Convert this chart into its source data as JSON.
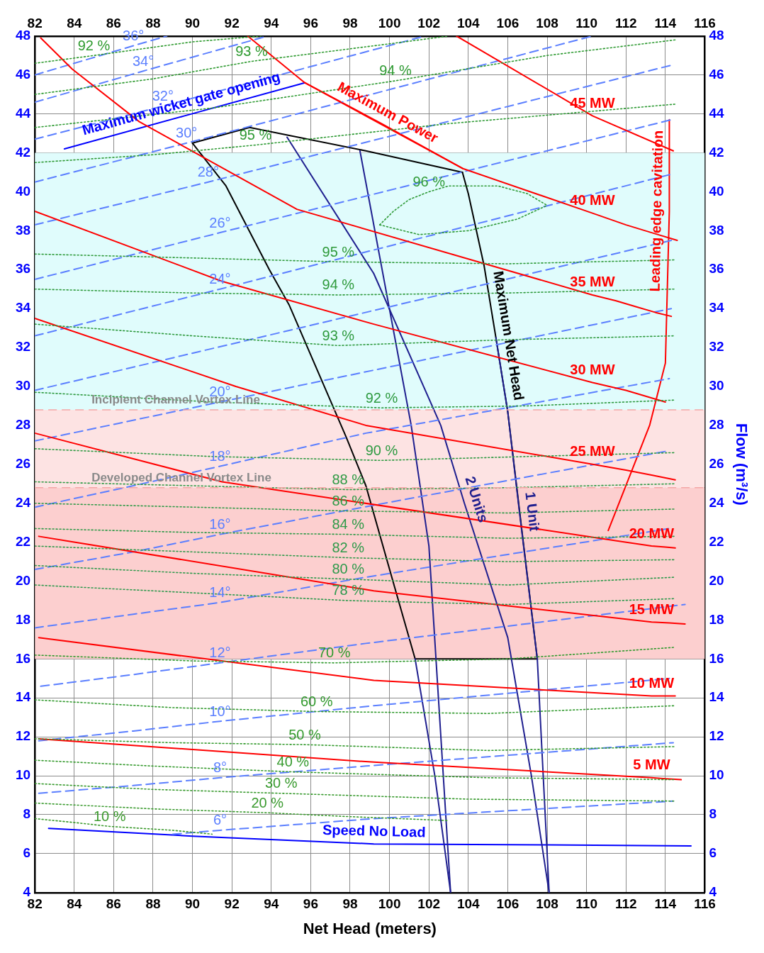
{
  "chart_data": {
    "type": "line",
    "xlabel": "Net Head (meters)",
    "y2label": "Flow (m³/s)",
    "xlim": [
      82,
      116
    ],
    "xticks": [
      82,
      84,
      86,
      88,
      90,
      92,
      94,
      96,
      98,
      100,
      102,
      104,
      106,
      108,
      110,
      112,
      114,
      116
    ],
    "x2lim": [
      82,
      116
    ],
    "x2ticks": [
      82,
      84,
      86,
      88,
      90,
      92,
      94,
      96,
      98,
      100,
      102,
      104,
      106,
      108,
      110,
      112,
      114,
      116
    ],
    "ylim": [
      4,
      48
    ],
    "yticks": [
      4,
      6,
      8,
      10,
      12,
      14,
      16,
      18,
      20,
      22,
      24,
      26,
      28,
      30,
      32,
      34,
      36,
      38,
      40,
      42,
      44,
      46,
      48
    ],
    "y2lim": [
      4,
      48
    ],
    "y2ticks": [
      4,
      6,
      8,
      10,
      12,
      14,
      16,
      18,
      20,
      22,
      24,
      26,
      28,
      30,
      32,
      34,
      36,
      38,
      40,
      42,
      44,
      46,
      48
    ],
    "grid": true,
    "marker": "none",
    "bands": [
      {
        "axis": "y",
        "from": 28.8,
        "to": 42,
        "color": "#e0fcfc"
      },
      {
        "axis": "y",
        "from": 24.8,
        "to": 28.8,
        "color": "#fde3e3"
      },
      {
        "axis": "y",
        "from": 16,
        "to": 24.8,
        "color": "#fccfcf"
      }
    ],
    "ref_lines": [
      {
        "axis": "y",
        "value": 28.8,
        "label": "Incipient Channel Vortex Line",
        "color": "#f4a6a6",
        "line_style": "dashed"
      },
      {
        "axis": "y",
        "value": 24.8,
        "label": "Developed Channel Vortex Line",
        "color": "#f4a6a6",
        "line_style": "dashed"
      }
    ],
    "series": [
      {
        "name": "92 %",
        "color": "#2e9a2e",
        "line_style": "dotted",
        "x": [
          82,
          83.5,
          85,
          90,
          93.5
        ],
        "values": [
          46.6,
          46.8,
          47,
          47.7,
          48
        ]
      },
      {
        "name": "93 %",
        "color": "#2e9a30",
        "line_style": "dotted",
        "x": [
          82,
          88,
          93,
          100,
          103
        ],
        "values": [
          45,
          45.8,
          46.7,
          47.6,
          48
        ]
      },
      {
        "name": "94 %",
        "color": "#2e9a32",
        "line_style": "dotted",
        "x": [
          82,
          91,
          100.3,
          108,
          114.5
        ],
        "values": [
          43.3,
          44.3,
          45.7,
          47,
          47.8
        ]
      },
      {
        "name": "95 %",
        "color": "#2e9a34",
        "line_style": "dotted",
        "x": [
          82,
          88,
          93.2,
          103,
          114.5
        ],
        "values": [
          41.5,
          41.9,
          42.4,
          43.5,
          44.5
        ]
      },
      {
        "name": "96 %",
        "color": "#2e9a36",
        "line_style": "dotted",
        "x": [
          99.5,
          100.2,
          101,
          102,
          103,
          105.5,
          107,
          108
        ],
        "values": [
          38.3,
          39,
          39.6,
          40,
          40.3,
          40.3,
          39.9,
          39.3
        ]
      },
      {
        "color": "#2e9a38",
        "line_style": "dotted",
        "x": [
          99.5,
          101.5,
          104,
          106.5,
          108
        ],
        "values": [
          38.3,
          37.8,
          38,
          38.6,
          39.3
        ]
      },
      {
        "name": "95 %",
        "color": "#2e9a3a",
        "line_style": "dotted",
        "x": [
          82,
          90,
          97.4,
          106,
          114.5
        ],
        "values": [
          36.8,
          36.6,
          36.4,
          36.3,
          36.5
        ]
      },
      {
        "name": "94 %",
        "color": "#2e9a3c",
        "line_style": "dotted",
        "x": [
          82,
          90,
          97.4,
          106,
          114.5
        ],
        "values": [
          35,
          34.8,
          34.7,
          34.8,
          35
        ]
      },
      {
        "name": "93 %",
        "color": "#2e9a3e",
        "line_style": "dotted",
        "x": [
          82,
          90,
          97.4,
          106,
          114.5
        ],
        "values": [
          33.2,
          32.6,
          32.1,
          32.4,
          32.6
        ]
      },
      {
        "name": "92 %",
        "color": "#2e9a40",
        "line_style": "dotted",
        "x": [
          82,
          91,
          99.6,
          107,
          114.5
        ],
        "values": [
          29.7,
          29.2,
          28.9,
          29,
          29.3
        ]
      },
      {
        "name": "90 %",
        "color": "#2e9a42",
        "line_style": "dotted",
        "x": [
          82,
          91,
          99.6,
          107,
          114.5
        ],
        "values": [
          26.8,
          26.4,
          26.2,
          26.4,
          26.6
        ]
      },
      {
        "name": "88 %",
        "color": "#2e9a44",
        "line_style": "dotted",
        "x": [
          82,
          90,
          97.9,
          106,
          114.5
        ],
        "values": [
          25.1,
          24.9,
          24.7,
          24.8,
          25
        ]
      },
      {
        "name": "86 %",
        "color": "#2e9a46",
        "line_style": "dotted",
        "x": [
          82,
          90,
          97.9,
          106,
          114.5
        ],
        "values": [
          24,
          23.8,
          23.6,
          23.5,
          23.7
        ]
      },
      {
        "name": "84 %",
        "color": "#2e9a48",
        "line_style": "dotted",
        "x": [
          82,
          90,
          97.9,
          106,
          114.5
        ],
        "values": [
          22.7,
          22.5,
          22.4,
          22.2,
          22.3
        ]
      },
      {
        "name": "82 %",
        "color": "#2e9a4a",
        "line_style": "dotted",
        "x": [
          82,
          90,
          97.9,
          106,
          114.5
        ],
        "values": [
          21.8,
          21.5,
          21.2,
          21,
          21.1
        ]
      },
      {
        "name": "80 %",
        "color": "#2e9a4c",
        "line_style": "dotted",
        "x": [
          82,
          90,
          97.9,
          106,
          114.5
        ],
        "values": [
          20.8,
          20.4,
          20.1,
          19.8,
          20.2
        ]
      },
      {
        "name": "78 %",
        "color": "#2e9a4e",
        "line_style": "dotted",
        "x": [
          82,
          90,
          97.9,
          106,
          114.5
        ],
        "values": [
          19.8,
          19.4,
          19,
          18.8,
          19.1
        ]
      },
      {
        "name": "70 %",
        "color": "#309a2e",
        "line_style": "dotted",
        "x": [
          82,
          90,
          97.2,
          106,
          114.5
        ],
        "values": [
          16.2,
          15.9,
          15.8,
          16,
          16.6
        ]
      },
      {
        "name": "60 %",
        "color": "#329a2e",
        "line_style": "dotted",
        "x": [
          82,
          89,
          96.3,
          105,
          114.5
        ],
        "values": [
          13.9,
          13.5,
          13.3,
          13.2,
          13.6
        ]
      },
      {
        "name": "50 %",
        "color": "#349a2e",
        "line_style": "dotted",
        "x": [
          82,
          89,
          95.7,
          105,
          114.5
        ],
        "values": [
          11.9,
          11.7,
          11.6,
          11.3,
          11.5
        ]
      },
      {
        "name": "40 %",
        "color": "#369a2e",
        "line_style": "dotted",
        "x": [
          82,
          88,
          95.1,
          105,
          114.5
        ],
        "values": [
          10.8,
          10.5,
          10.2,
          9.9,
          9.8
        ]
      },
      {
        "name": "30 %",
        "color": "#389a2e",
        "line_style": "dotted",
        "x": [
          82,
          88,
          94.5,
          104,
          114.5
        ],
        "values": [
          9.6,
          9.3,
          9.1,
          8.8,
          8.7
        ]
      },
      {
        "name": "20 %",
        "color": "#3a9a2e",
        "line_style": "dotted",
        "x": [
          82,
          88,
          93.8,
          98,
          103
        ],
        "values": [
          8.6,
          8.3,
          8.1,
          7.9,
          7.7
        ]
      },
      {
        "name": "10 %",
        "color": "#3c9a2e",
        "line_style": "dotted",
        "x": [
          82,
          84,
          85.8,
          89,
          91
        ],
        "values": [
          7.8,
          7.6,
          7.4,
          7.2,
          7
        ]
      },
      {
        "name": "5 MW",
        "color": "#ff0000",
        "x": [
          82.2,
          99.2,
          113.3,
          114,
          114.8
        ],
        "values": [
          11.9,
          10.7,
          9.9,
          9.85,
          9.8
        ]
      },
      {
        "name": "10 MW",
        "color": "#ff0000",
        "x": [
          82.2,
          99.2,
          113.3,
          114,
          114.5
        ],
        "values": [
          17.1,
          14.9,
          14.1,
          14.1,
          14.1
        ]
      },
      {
        "name": "15 MW",
        "color": "#ff0000",
        "x": [
          82.2,
          99.2,
          113.3,
          114.2,
          115
        ],
        "values": [
          22.3,
          19.5,
          17.9,
          17.85,
          17.8
        ]
      },
      {
        "name": "20 MW",
        "color": "#ff0000",
        "x": [
          82,
          91.5,
          113.3,
          114,
          114.5
        ],
        "values": [
          27.6,
          25.1,
          21.8,
          21.75,
          21.7
        ]
      },
      {
        "name": "25 MW",
        "color": "#ff0000",
        "x": [
          82,
          92.2,
          98.8,
          110.3,
          112,
          113.3,
          114.5
        ],
        "values": [
          33.5,
          30,
          28,
          26,
          25.7,
          25.45,
          25.2
        ]
      },
      {
        "name": "30 MW",
        "color": "#ff0000",
        "x": [
          82,
          91.5,
          99.2,
          110.3,
          112,
          113,
          114
        ],
        "values": [
          39,
          35.4,
          33.2,
          30.2,
          29.8,
          29.5,
          29.2
        ]
      },
      {
        "name": "35 MW",
        "color": "#ff0000",
        "x": [
          82.3,
          83.9,
          87.3,
          95.3,
          110.3,
          111.5,
          112.5,
          113.5,
          114.3
        ],
        "values": [
          47.9,
          46.3,
          43.6,
          39.1,
          34.7,
          34.4,
          34.1,
          33.8,
          33.6
        ]
      },
      {
        "name": "40 MW",
        "color": "#ff0000",
        "x": [
          92.8,
          95.7,
          103.7,
          110.3,
          112,
          113.3,
          114.6
        ],
        "values": [
          48,
          45.6,
          41.2,
          38.9,
          38.3,
          37.9,
          37.5
        ]
      },
      {
        "name": "45 MW",
        "color": "#ff0000",
        "x": [
          103.4,
          110.3,
          114.4
        ],
        "values": [
          48,
          43.9,
          42.1
        ]
      },
      {
        "name": "6°",
        "color": "#5b7fff",
        "line_style": "dashed",
        "x": [
          89,
          90.2,
          91.4,
          99.2,
          114.4
        ],
        "values": [
          7,
          7.1,
          7.2,
          7.8,
          8.7
        ]
      },
      {
        "name": "8°",
        "color": "#5b7fff",
        "line_style": "dashed",
        "x": [
          82.2,
          87,
          91.4,
          98.8,
          114.4
        ],
        "values": [
          9.1,
          9.5,
          9.9,
          10.5,
          11.7
        ]
      },
      {
        "name": "10°",
        "color": "#5b7fff",
        "line_style": "dashed",
        "x": [
          82.2,
          87,
          91.4,
          99.2,
          114.2
        ],
        "values": [
          11.8,
          12.3,
          12.8,
          13.6,
          15
        ]
      },
      {
        "name": "12°",
        "color": "#5b7fff",
        "line_style": "dashed",
        "x": [
          82.3,
          87,
          91.4,
          98.8,
          115
        ],
        "values": [
          14.6,
          15.2,
          15.8,
          16.8,
          18.8
        ]
      },
      {
        "name": "14°",
        "color": "#5b7fff",
        "line_style": "dashed",
        "x": [
          82,
          87,
          91.4,
          98.8,
          114.2
        ],
        "values": [
          17.6,
          18.3,
          18.9,
          20.2,
          22.7
        ]
      },
      {
        "name": "16°",
        "color": "#5b7fff",
        "line_style": "dashed",
        "x": [
          82,
          87,
          91.4,
          99.2,
          114.2
        ],
        "values": [
          20.6,
          21.5,
          22.4,
          23.9,
          26.7
        ]
      },
      {
        "name": "18°",
        "color": "#5b7fff",
        "line_style": "dashed",
        "x": [
          82,
          87,
          91.4,
          98.8,
          114.2
        ],
        "values": [
          23.8,
          24.9,
          25.9,
          27.6,
          30.4
        ]
      },
      {
        "name": "20°",
        "color": "#5b7fff",
        "line_style": "dashed",
        "x": [
          82,
          91.4,
          114.3
        ],
        "values": [
          27.2,
          29.2,
          34
        ]
      },
      {
        "color": "#5b7fff",
        "line_style": "dashed",
        "x": [
          82,
          114.3
        ],
        "values": [
          29.8,
          37.5
        ]
      },
      {
        "name": "24°",
        "color": "#5b7fff",
        "line_style": "dashed",
        "x": [
          82,
          91.4,
          114.3
        ],
        "values": [
          32.6,
          35,
          40.9
        ]
      },
      {
        "name": "26°",
        "color": "#5b7fff",
        "line_style": "dashed",
        "x": [
          82,
          91.4,
          114.3
        ],
        "values": [
          35.5,
          37.9,
          43.7
        ]
      },
      {
        "name": "28°",
        "color": "#5b7fff",
        "line_style": "dashed",
        "x": [
          82,
          90.8,
          114.3
        ],
        "values": [
          38.3,
          40.5,
          46.5
        ]
      },
      {
        "name": "30°",
        "color": "#5b7fff",
        "line_style": "dashed",
        "x": [
          82,
          89.7,
          110.3
        ],
        "values": [
          40.5,
          42.5,
          48
        ]
      },
      {
        "name": "32°",
        "color": "#5b7fff",
        "line_style": "dashed",
        "x": [
          82,
          88.5,
          101.8
        ],
        "values": [
          42.7,
          44.4,
          48
        ]
      },
      {
        "name": "34°",
        "color": "#5b7fff",
        "line_style": "dashed",
        "x": [
          82,
          87.5,
          93.8
        ],
        "values": [
          44.6,
          46.2,
          48
        ]
      },
      {
        "name": "36°",
        "color": "#5b7fff",
        "line_style": "dashed",
        "x": [
          82,
          87,
          88.7
        ],
        "values": [
          46,
          47.5,
          48
        ]
      },
      {
        "name": "2 Units",
        "color": "#1f1f8f",
        "x": [
          94.8,
          99.2,
          102.6,
          103.8,
          106,
          107.2,
          108.1
        ],
        "values": [
          42.8,
          35.8,
          28,
          24,
          17.1,
          10,
          4
        ]
      },
      {
        "color": "#1f1f8f",
        "x": [
          98.5,
          101.1,
          102,
          103.1
        ],
        "values": [
          42.1,
          28,
          21.8,
          4
        ]
      },
      {
        "color": "#1f1f8f",
        "x": [
          101.3,
          102.3,
          103.1
        ],
        "values": [
          16,
          10,
          4
        ]
      },
      {
        "name": "1 Unit",
        "color": "#1f1f8f",
        "x": [
          105.4,
          106,
          106.6,
          107.5,
          108.1
        ],
        "values": [
          32.5,
          28.7,
          23.5,
          16,
          4
        ]
      },
      {
        "name": "Maximum Net Head",
        "color": "#000000",
        "x": [
          103.7,
          104,
          104.8,
          105.4,
          106,
          106.8,
          107.5
        ],
        "values": [
          41,
          39.9,
          36.2,
          32.5,
          28.7,
          21.9,
          16
        ]
      },
      {
        "color": "#010101",
        "x": [
          90,
          92.9,
          98.8,
          103.7
        ],
        "values": [
          42.5,
          43.3,
          42.1,
          41
        ]
      },
      {
        "color": "#020202",
        "x": [
          90,
          91.7,
          93.9,
          94.9,
          97.8,
          98.8,
          100.2,
          101.3,
          107.5
        ],
        "values": [
          42.5,
          40.3,
          36,
          34.2,
          27.4,
          24.9,
          19.9,
          16,
          16
        ]
      },
      {
        "name": "Maximum wicket gate opening",
        "color": "#0000ff",
        "x": [
          83.5,
          89.6,
          95.7
        ],
        "values": [
          42.2,
          43.9,
          45.6
        ]
      },
      {
        "name": "Maximum Power",
        "color": "#ff0000",
        "x": [
          95.7,
          99.6,
          103.7
        ],
        "values": [
          45.6,
          43.5,
          41.2
        ]
      },
      {
        "name": "Leading edge cavitation",
        "color": "#ff0000",
        "x": [
          111.1,
          113.2,
          114,
          114.2,
          114.2,
          114.2,
          114.2
        ],
        "values": [
          22.6,
          28,
          31.2,
          39,
          41,
          42.5,
          43.7
        ]
      },
      {
        "name": "Speed No Load",
        "color": "#0000ff",
        "x": [
          82.7,
          90,
          99.2,
          108,
          115.3
        ],
        "values": [
          7.3,
          6.9,
          6.5,
          6.45,
          6.4
        ]
      }
    ]
  }
}
